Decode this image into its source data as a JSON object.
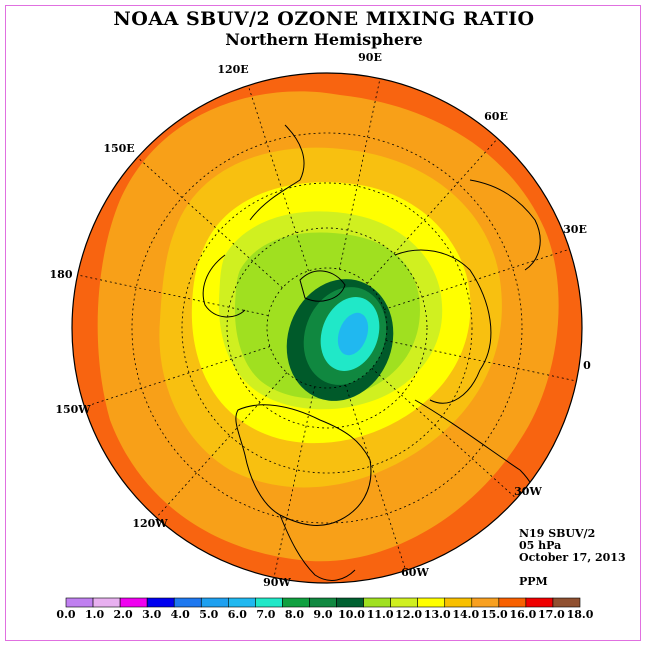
{
  "title": "NOAA SBUV/2 OZONE MIXING RATIO",
  "subtitle": "Northern Hemisphere",
  "longitude_labels": [
    "90E",
    "60E",
    "30E",
    "0",
    "30W",
    "60W",
    "90W",
    "120W",
    "150W",
    "180",
    "150E",
    "120E"
  ],
  "info": {
    "satellite": "N19 SBUV/2",
    "level": "05 hPa",
    "date": "October 17, 2013",
    "units": "PPM"
  },
  "colorbar": {
    "ticks": [
      "0.0",
      "1.0",
      "2.0",
      "3.0",
      "4.0",
      "5.0",
      "6.0",
      "7.0",
      "8.0",
      "9.0",
      "10.0",
      "11.0",
      "12.0",
      "13.0",
      "14.0",
      "15.0",
      "16.0",
      "17.0",
      "18.0"
    ],
    "colors": [
      "#c080f0",
      "#e8b0f0",
      "#f000f0",
      "#0000f0",
      "#1e78f0",
      "#1ea0f0",
      "#20b8f0",
      "#20e8c8",
      "#10a040",
      "#108840",
      "#006030",
      "#a0e020",
      "#d0f020",
      "#ffff00",
      "#f8c000",
      "#f8a020",
      "#f86000",
      "#f00000",
      "#905030"
    ]
  },
  "map_colors": {
    "ring_16": "#f86410",
    "ring_15": "#f8a018",
    "ring_14": "#f8c010",
    "ring_13": "#ffff00",
    "ring_12": "#d0f020",
    "ring_11": "#a0e020",
    "ring_10": "#005a2a",
    "ring_9": "#108840",
    "ring_8": "#20e8c8",
    "ring_7": "#20b8f0"
  }
}
